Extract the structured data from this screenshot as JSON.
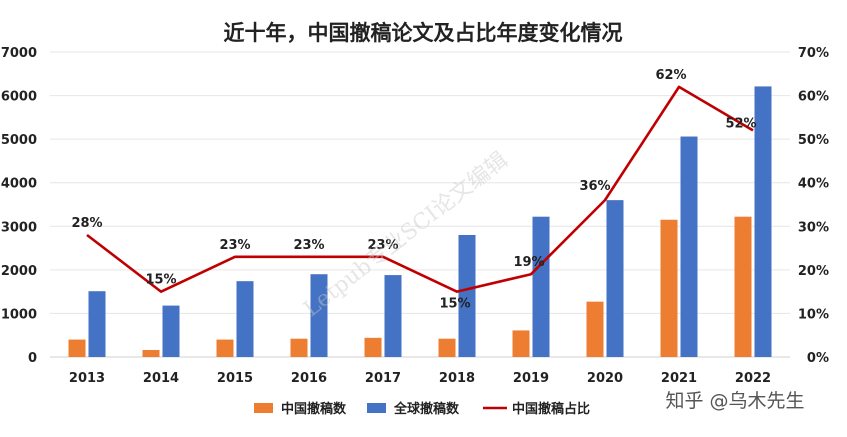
{
  "chart_data": {
    "type": "bar",
    "title": "近十年，中国撤稿论文及占比年度变化情况",
    "categories": [
      "2013",
      "2014",
      "2015",
      "2016",
      "2017",
      "2018",
      "2019",
      "2020",
      "2021",
      "2022"
    ],
    "series": [
      {
        "name": "中国撤稿数",
        "kind": "bar",
        "axis": "left",
        "color": "#ED7D31",
        "values": [
          400,
          160,
          400,
          420,
          440,
          420,
          610,
          1270,
          3150,
          3220
        ]
      },
      {
        "name": "全球撤稿数",
        "kind": "bar",
        "axis": "left",
        "color": "#4472C4",
        "values": [
          1510,
          1180,
          1740,
          1900,
          1880,
          2800,
          3220,
          3600,
          5060,
          6210
        ]
      },
      {
        "name": "中国撤稿占比",
        "kind": "line",
        "axis": "right",
        "color": "#C00000",
        "values": [
          28,
          15,
          23,
          23,
          23,
          15,
          19,
          36,
          62,
          52
        ],
        "labels": [
          "28%",
          "15%",
          "23%",
          "23%",
          "23%",
          "15%",
          "19%",
          "36%",
          "62%",
          "52%"
        ]
      }
    ],
    "y_left": {
      "min": 0,
      "max": 7000,
      "step": 1000,
      "ticks": [
        "0",
        "1000",
        "2000",
        "3000",
        "4000",
        "5000",
        "6000",
        "7000"
      ]
    },
    "y_right": {
      "min": 0,
      "max": 70,
      "step": 10,
      "ticks": [
        "0%",
        "10%",
        "20%",
        "30%",
        "40%",
        "50%",
        "60%",
        "70%"
      ]
    },
    "grid": true,
    "legend": "bottom"
  },
  "watermark": "Letpub专业SCI论文编辑",
  "brand": {
    "text": "知乎 @乌木先生"
  }
}
